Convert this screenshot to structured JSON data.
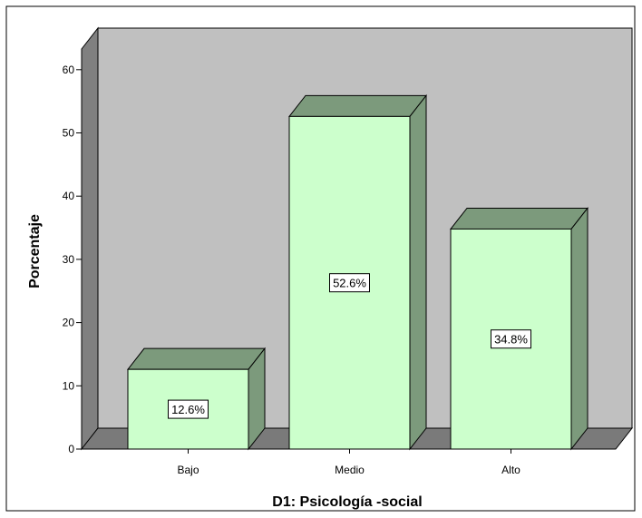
{
  "chart_data": {
    "type": "bar",
    "title": "",
    "xlabel": "D1: Psicología -social",
    "ylabel": "Porcentaje",
    "categories": [
      "Bajo",
      "Medio",
      "Alto"
    ],
    "values": [
      12.6,
      52.6,
      34.8
    ],
    "data_labels": [
      "12.6%",
      "52.6%",
      "34.8%"
    ],
    "y_ticks": [
      "0",
      "10",
      "20",
      "30",
      "40",
      "50",
      "60"
    ],
    "ylim": [
      0,
      64
    ],
    "grid": false,
    "legend": "none",
    "style": "3d",
    "colors": {
      "bar_front": "#ccffcc",
      "bar_side": "#7c9a7c",
      "wall_back": "#c0c0c0",
      "wall_left": "#808080",
      "floor": "#7a7a7a"
    }
  }
}
